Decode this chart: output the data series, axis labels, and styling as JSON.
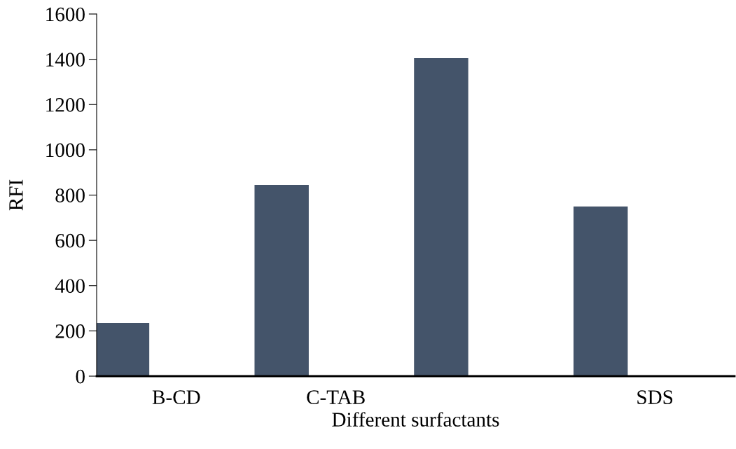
{
  "chart_data": {
    "type": "bar",
    "xlabel": "Different surfactants",
    "ylabel": "RFI",
    "categories": [
      "B-CD",
      "C-TAB",
      null,
      "SDS"
    ],
    "series": [
      {
        "color": "#44546a",
        "values": [
          235,
          845,
          1405,
          750
        ]
      },
      {
        "color": "#4472c4",
        "values": [
          3,
          3,
          3,
          3
        ]
      }
    ],
    "ylim": [
      0,
      1600
    ],
    "yticks": [
      0,
      200,
      400,
      600,
      800,
      1000,
      1200,
      1400,
      1600
    ],
    "grid": false,
    "legend": false
  }
}
